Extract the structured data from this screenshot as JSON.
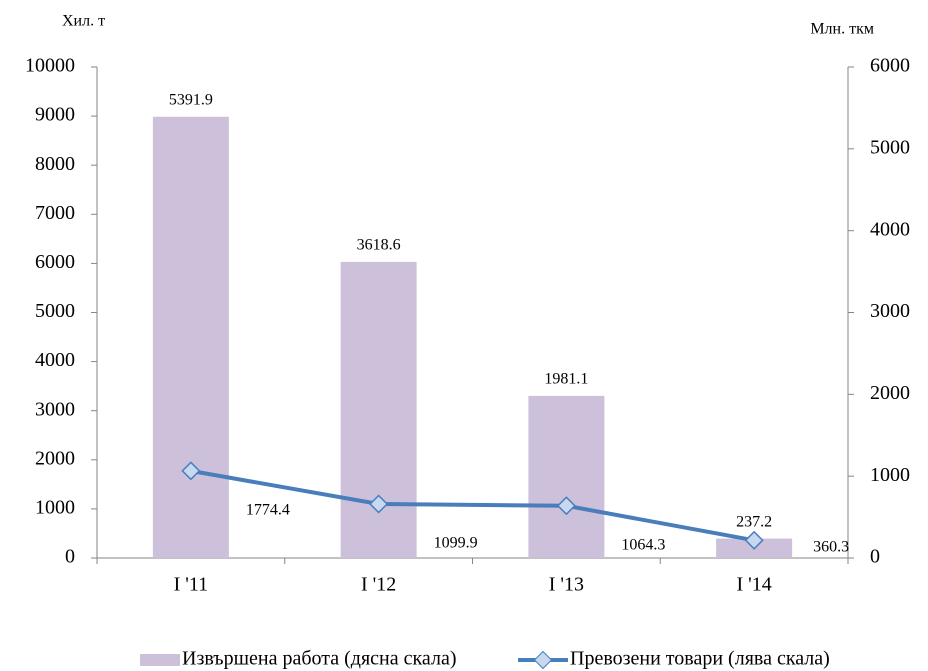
{
  "chart_data": {
    "type": "bar_line",
    "y_label": "Хил. т",
    "y2_label": "Млн. ткм",
    "categories": [
      "I '11",
      "I '12",
      "I '13",
      "I '14"
    ],
    "series": [
      {
        "name": "Извършена работа (дясна скала)",
        "type": "bar",
        "axis": "y2",
        "color": "#ccc0da",
        "values": [
          5391.9,
          3618.6,
          1981.1,
          237.2
        ]
      },
      {
        "name": "Превозени товари (лява скала)",
        "type": "line",
        "axis": "y",
        "color": "#4a7ebb",
        "values": [
          1774.4,
          1099.9,
          1064.3,
          360.3
        ]
      }
    ],
    "ylim": [
      0,
      10000
    ],
    "yticks": [
      0,
      1000,
      2000,
      3000,
      4000,
      5000,
      6000,
      7000,
      8000,
      9000,
      10000
    ],
    "y2lim": [
      0,
      6000
    ],
    "y2ticks": [
      0,
      1000,
      2000,
      3000,
      4000,
      5000,
      6000
    ],
    "grid": false,
    "legend": "bottom"
  }
}
